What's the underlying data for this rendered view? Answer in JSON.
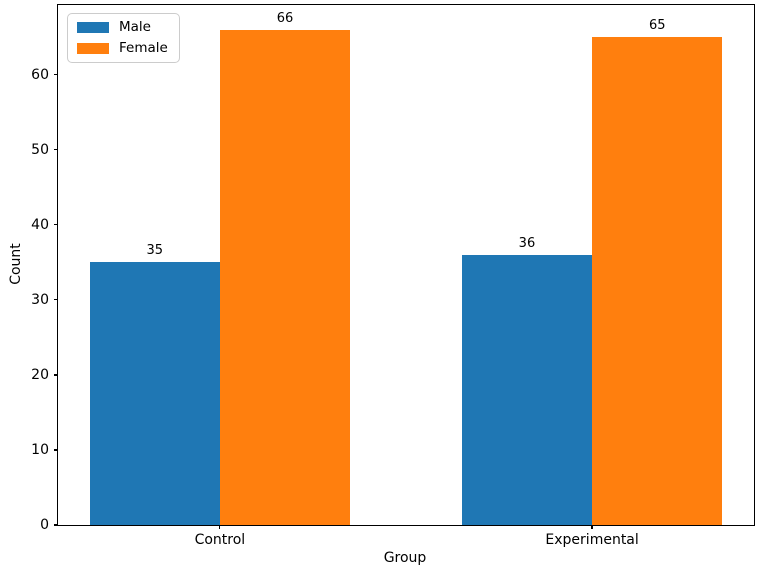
{
  "chart_data": {
    "type": "bar",
    "title": "",
    "xlabel": "Group",
    "ylabel": "Count",
    "categories": [
      "Control",
      "Experimental"
    ],
    "series": [
      {
        "name": "Male",
        "color": "#1f77b4",
        "values": [
          35,
          36
        ]
      },
      {
        "name": "Female",
        "color": "#ff7f0e",
        "values": [
          66,
          65
        ]
      }
    ],
    "value_labels_shown": true,
    "yticks": [
      0,
      10,
      20,
      30,
      40,
      50,
      60
    ],
    "ylim": [
      0,
      69.3
    ],
    "grid": false,
    "legend_position": "upper-left",
    "legend_entries": [
      "Male",
      "Female"
    ],
    "axis_color": "#000000",
    "background_color": "#ffffff"
  }
}
